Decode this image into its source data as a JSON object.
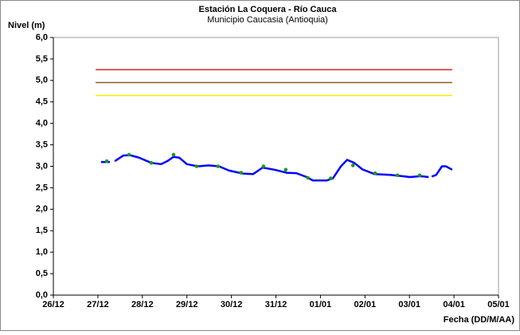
{
  "chart_data": {
    "type": "line",
    "title": "Estación La Coquera - Río Cauca",
    "subtitle": "Municipio Caucasia (Antioquia)",
    "y_label": "Nivel (m)",
    "x_label": "Fecha (DD/M/AA)",
    "xlim": [
      0,
      10
    ],
    "xticks": [
      {
        "value": 0,
        "label": "26/12"
      },
      {
        "value": 1,
        "label": "27/12"
      },
      {
        "value": 2,
        "label": "28/12"
      },
      {
        "value": 3,
        "label": "29/12"
      },
      {
        "value": 4,
        "label": "30/12"
      },
      {
        "value": 5,
        "label": "31/12"
      },
      {
        "value": 6,
        "label": "01/01"
      },
      {
        "value": 7,
        "label": "02/01"
      },
      {
        "value": 8,
        "label": "03/01"
      },
      {
        "value": 9,
        "label": "04/01"
      },
      {
        "value": 10,
        "label": "05/01"
      }
    ],
    "ylim": [
      0,
      6
    ],
    "yticks": [
      {
        "value": 0,
        "label": "0,0"
      },
      {
        "value": 0.5,
        "label": "0,5"
      },
      {
        "value": 1,
        "label": "1,0"
      },
      {
        "value": 1.5,
        "label": "1,5"
      },
      {
        "value": 2,
        "label": "2,0"
      },
      {
        "value": 2.5,
        "label": "2,5"
      },
      {
        "value": 3,
        "label": "3,0"
      },
      {
        "value": 3.5,
        "label": "3,5"
      },
      {
        "value": 4,
        "label": "4,0"
      },
      {
        "value": 4.5,
        "label": "4,5"
      },
      {
        "value": 5,
        "label": "5,0"
      },
      {
        "value": 5.5,
        "label": "5,5"
      },
      {
        "value": 6,
        "label": "6,0"
      }
    ],
    "reference_lines": [
      {
        "value": 5.25,
        "x": [
          0.95,
          8.96
        ],
        "color": "#e02020"
      },
      {
        "value": 4.95,
        "x": [
          0.95,
          8.96
        ],
        "color": "#8b5a2b"
      },
      {
        "value": 4.65,
        "x": [
          0.95,
          8.96
        ],
        "color": "#f0f000"
      }
    ],
    "series": [
      {
        "kind": "line",
        "color": "#0000ff",
        "x": [
          1.07,
          1.27,
          null,
          1.38,
          1.57,
          1.72,
          1.93,
          2.2,
          2.42,
          2.56,
          2.7,
          2.83,
          3.0,
          3.24,
          3.49,
          3.72,
          3.95,
          4.26,
          4.49,
          4.7,
          4.97,
          5.24,
          5.46,
          5.69,
          5.83,
          6.14,
          6.28,
          6.46,
          6.6,
          6.76,
          6.94,
          7.21,
          7.57,
          7.84,
          8.01,
          8.25,
          8.43,
          null,
          8.5,
          8.6,
          8.73,
          8.82,
          8.96
        ],
        "values": [
          3.1,
          3.1,
          null,
          3.12,
          3.25,
          3.26,
          3.2,
          3.08,
          3.05,
          3.12,
          3.22,
          3.2,
          3.05,
          3.0,
          3.02,
          3.0,
          2.9,
          2.83,
          2.82,
          2.97,
          2.92,
          2.85,
          2.84,
          2.75,
          2.67,
          2.67,
          2.72,
          3.0,
          3.15,
          3.08,
          2.93,
          2.82,
          2.8,
          2.77,
          2.75,
          2.77,
          2.75,
          null,
          2.76,
          2.8,
          3.0,
          3.0,
          2.92
        ]
      },
      {
        "kind": "points",
        "color": "#1a9a1a",
        "x": [
          1.2,
          1.7,
          2.2,
          2.7,
          3.22,
          3.7,
          4.22,
          4.72,
          5.22,
          5.72,
          6.23,
          6.73,
          7.23,
          7.73,
          8.23
        ],
        "values": [
          3.12,
          3.27,
          3.08,
          3.27,
          3.0,
          3.0,
          2.85,
          3.0,
          2.92,
          2.73,
          2.72,
          3.02,
          2.84,
          2.79,
          2.79
        ]
      }
    ]
  }
}
